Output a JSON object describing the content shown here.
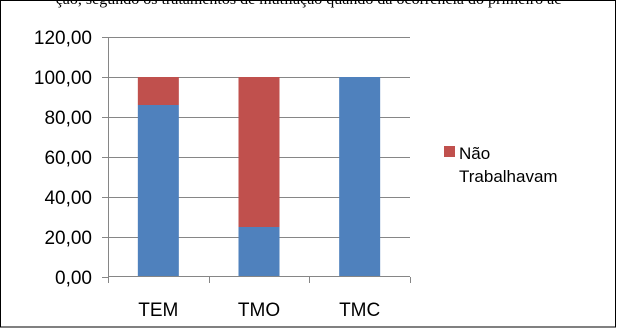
{
  "caption": "ção, segundo os tratamentos de mutilação quando da ocorrência do primeiro ac",
  "chart_data": {
    "type": "bar",
    "stacked": true,
    "categories": [
      "TEM",
      "TMO",
      "TMC"
    ],
    "series": [
      {
        "name": "",
        "color": "#4F81BD",
        "values": [
          86,
          25,
          100
        ]
      },
      {
        "name": "Não Trabalhavam",
        "color": "#C0504D",
        "values": [
          14,
          75,
          0
        ]
      }
    ],
    "y_ticks": [
      "0,00",
      "20,00",
      "40,00",
      "60,00",
      "80,00",
      "100,00",
      "120,00"
    ],
    "ylim": [
      0,
      120
    ],
    "grid": true,
    "legend": {
      "position": "right",
      "lines": [
        "Não",
        "Trabalhavam"
      ]
    }
  }
}
